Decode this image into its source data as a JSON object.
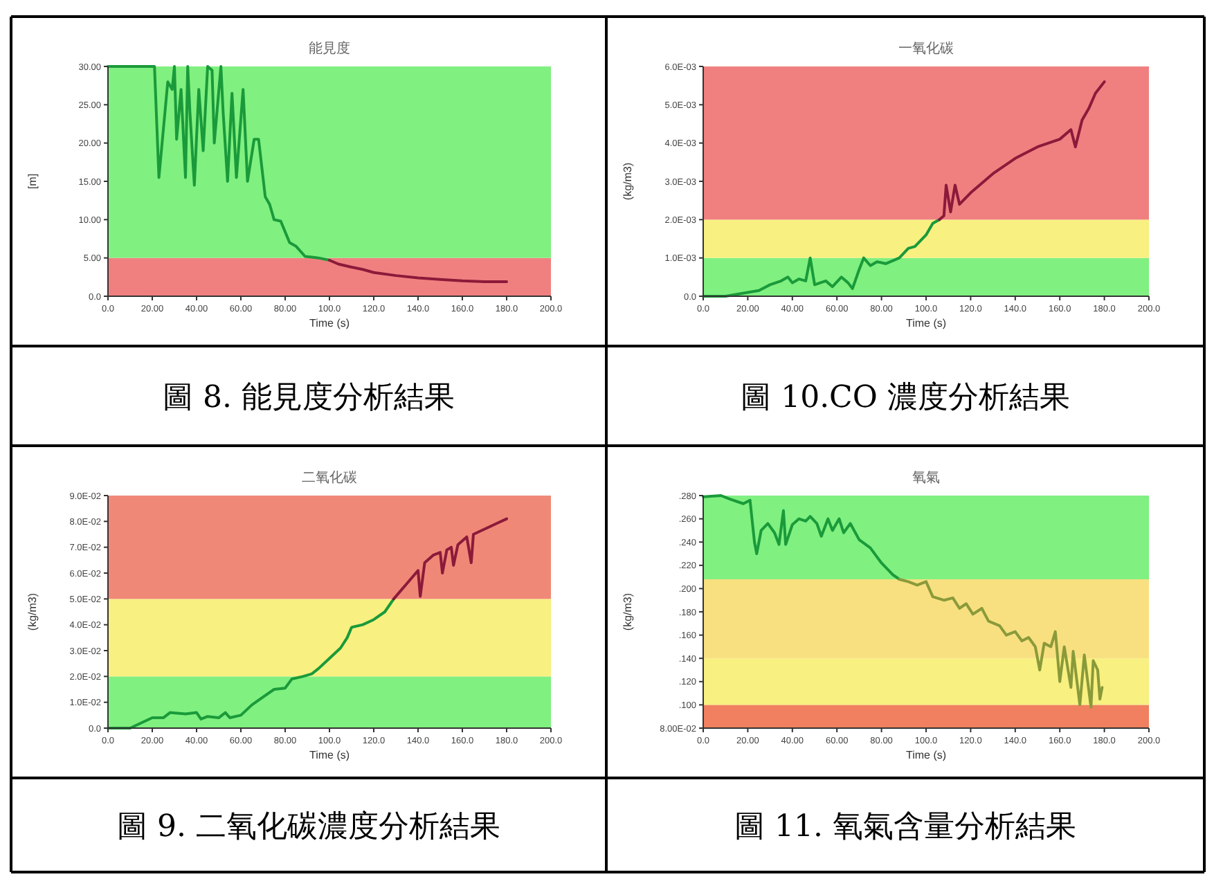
{
  "chart_data": [
    {
      "type": "line",
      "title": "能見度",
      "xlabel": "Time (s)",
      "ylabel": "[m]",
      "xlim": [
        0,
        200
      ],
      "ylim": [
        0,
        30
      ],
      "xticks": [
        {
          "value": 0,
          "label": "0.0"
        },
        {
          "value": 20,
          "label": "20.00"
        },
        {
          "value": 40,
          "label": "40.00"
        },
        {
          "value": 60,
          "label": "60.00"
        },
        {
          "value": 80,
          "label": "80.00"
        },
        {
          "value": 100,
          "label": "100.0"
        },
        {
          "value": 120,
          "label": "120.0"
        },
        {
          "value": 140,
          "label": "140.0"
        },
        {
          "value": 160,
          "label": "160.0"
        },
        {
          "value": 180,
          "label": "180.0"
        },
        {
          "value": 200,
          "label": "200.0"
        }
      ],
      "yticks": [
        {
          "value": 0,
          "label": "0.0"
        },
        {
          "value": 5,
          "label": "5.00"
        },
        {
          "value": 10,
          "label": "10.00"
        },
        {
          "value": 15,
          "label": "15.00"
        },
        {
          "value": 20,
          "label": "20.00"
        },
        {
          "value": 25,
          "label": "25.00"
        },
        {
          "value": 30,
          "label": "30.00"
        }
      ],
      "bands": [
        {
          "axis": "y",
          "from": 0,
          "to": 5,
          "color": "#f08080"
        },
        {
          "axis": "y",
          "from": 5,
          "to": 30,
          "color": "#80f080"
        }
      ],
      "series": [
        {
          "color": "#1a9a3a",
          "x": [
            0,
            21,
            23,
            27,
            29,
            30,
            31,
            33,
            35,
            36,
            37,
            39,
            41,
            43,
            45,
            47,
            48,
            51,
            52,
            54,
            56,
            58,
            61,
            63,
            66,
            68,
            71,
            73,
            75,
            78,
            82,
            85,
            89,
            92,
            95,
            100
          ],
          "values": [
            30,
            30,
            15.5,
            28,
            27,
            30,
            20.5,
            27,
            15.5,
            30,
            24,
            14.5,
            27,
            19,
            30,
            29.5,
            20,
            30,
            24,
            15,
            26.5,
            15.5,
            27,
            15,
            20.5,
            20.5,
            13,
            12,
            10,
            9.8,
            7,
            6.5,
            5.2,
            5.1,
            5,
            4.7
          ]
        },
        {
          "color": "#8b1a3a",
          "x": [
            100,
            104,
            110,
            115,
            120,
            130,
            140,
            150,
            160,
            170,
            180
          ],
          "values": [
            4.7,
            4.2,
            3.8,
            3.5,
            3.1,
            2.7,
            2.4,
            2.2,
            2.0,
            1.9,
            1.9
          ]
        }
      ],
      "annotations": [
        "圖 8. 能見度分析結果"
      ]
    },
    {
      "type": "line",
      "title": "一氧化碳",
      "xlabel": "Time (s)",
      "ylabel": "(kg/m3)",
      "xlim": [
        0,
        200
      ],
      "ylim": [
        0,
        0.006
      ],
      "xticks": [
        {
          "value": 0,
          "label": "0.0"
        },
        {
          "value": 20,
          "label": "20.00"
        },
        {
          "value": 40,
          "label": "40.00"
        },
        {
          "value": 60,
          "label": "60.00"
        },
        {
          "value": 80,
          "label": "80.00"
        },
        {
          "value": 100,
          "label": "100.0"
        },
        {
          "value": 120,
          "label": "120.0"
        },
        {
          "value": 140,
          "label": "140.0"
        },
        {
          "value": 160,
          "label": "160.0"
        },
        {
          "value": 180,
          "label": "180.0"
        },
        {
          "value": 200,
          "label": "200.0"
        }
      ],
      "yticks": [
        {
          "value": 0,
          "label": "0.0"
        },
        {
          "value": 0.001,
          "label": "1.0E-03"
        },
        {
          "value": 0.002,
          "label": "2.0E-03"
        },
        {
          "value": 0.003,
          "label": "3.0E-03"
        },
        {
          "value": 0.004,
          "label": "4.0E-03"
        },
        {
          "value": 0.005,
          "label": "5.0E-03"
        },
        {
          "value": 0.006,
          "label": "6.0E-03"
        }
      ],
      "bands": [
        {
          "axis": "y",
          "from": 0,
          "to": 0.001,
          "color": "#80f080"
        },
        {
          "axis": "y",
          "from": 0.001,
          "to": 0.002,
          "color": "#f8f080"
        },
        {
          "axis": "y",
          "from": 0.002,
          "to": 0.006,
          "color": "#f08080"
        }
      ],
      "series": [
        {
          "color": "#1a9a3a",
          "x": [
            0,
            10,
            15,
            20,
            25,
            30,
            35,
            38,
            40,
            43,
            46,
            48,
            50,
            55,
            58,
            62,
            65,
            67,
            70,
            72,
            75,
            78,
            82,
            88,
            92,
            95,
            100,
            103,
            106
          ],
          "values": [
            0,
            0,
            5e-05,
            0.0001,
            0.00015,
            0.0003,
            0.0004,
            0.0005,
            0.00035,
            0.00045,
            0.0004,
            0.001,
            0.0003,
            0.0004,
            0.00025,
            0.0005,
            0.00035,
            0.0002,
            0.0007,
            0.001,
            0.0008,
            0.0009,
            0.00085,
            0.001,
            0.00125,
            0.0013,
            0.0016,
            0.0019,
            0.002
          ]
        },
        {
          "color": "#8b1a3a",
          "x": [
            106,
            108,
            109,
            111,
            113,
            115,
            120,
            125,
            130,
            135,
            140,
            145,
            150,
            155,
            160,
            165,
            167,
            170,
            173,
            176,
            180
          ],
          "values": [
            0.002,
            0.0021,
            0.0029,
            0.0022,
            0.0029,
            0.0024,
            0.0027,
            0.00295,
            0.0032,
            0.0034,
            0.0036,
            0.00375,
            0.0039,
            0.004,
            0.0041,
            0.00435,
            0.0039,
            0.0046,
            0.0049,
            0.0053,
            0.0056
          ]
        }
      ],
      "annotations": [
        "圖 10.CO 濃度分析結果"
      ]
    },
    {
      "type": "line",
      "title": "二氧化碳",
      "xlabel": "Time (s)",
      "ylabel": "(kg/m3)",
      "xlim": [
        0,
        200
      ],
      "ylim": [
        0,
        0.09
      ],
      "xticks": [
        {
          "value": 0,
          "label": "0.0"
        },
        {
          "value": 20,
          "label": "20.00"
        },
        {
          "value": 40,
          "label": "40.00"
        },
        {
          "value": 60,
          "label": "60.00"
        },
        {
          "value": 80,
          "label": "80.00"
        },
        {
          "value": 100,
          "label": "100.0"
        },
        {
          "value": 120,
          "label": "120.0"
        },
        {
          "value": 140,
          "label": "140.0"
        },
        {
          "value": 160,
          "label": "160.0"
        },
        {
          "value": 180,
          "label": "180.0"
        },
        {
          "value": 200,
          "label": "200.0"
        }
      ],
      "yticks": [
        {
          "value": 0,
          "label": "0.0"
        },
        {
          "value": 0.01,
          "label": "1.0E-02"
        },
        {
          "value": 0.02,
          "label": "2.0E-02"
        },
        {
          "value": 0.03,
          "label": "3.0E-02"
        },
        {
          "value": 0.04,
          "label": "4.0E-02"
        },
        {
          "value": 0.05,
          "label": "5.0E-02"
        },
        {
          "value": 0.06,
          "label": "6.0E-02"
        },
        {
          "value": 0.07,
          "label": "7.0E-02"
        },
        {
          "value": 0.08,
          "label": "8.0E-02"
        },
        {
          "value": 0.09,
          "label": "9.0E-02"
        }
      ],
      "bands": [
        {
          "axis": "y",
          "from": 0,
          "to": 0.02,
          "color": "#80f080"
        },
        {
          "axis": "y",
          "from": 0.02,
          "to": 0.05,
          "color": "#f8f080"
        },
        {
          "axis": "y",
          "from": 0.05,
          "to": 0.09,
          "color": "#f08878"
        }
      ],
      "series": [
        {
          "color": "#1a9a3a",
          "x": [
            0,
            10,
            15,
            20,
            25,
            28,
            35,
            40,
            42,
            45,
            50,
            53,
            55,
            60,
            65,
            70,
            75,
            80,
            83,
            88,
            92,
            95,
            100,
            105,
            108,
            110,
            115,
            120,
            125,
            129
          ],
          "values": [
            0,
            0,
            0.002,
            0.004,
            0.004,
            0.006,
            0.0055,
            0.006,
            0.0035,
            0.0045,
            0.004,
            0.006,
            0.004,
            0.005,
            0.009,
            0.012,
            0.015,
            0.0155,
            0.019,
            0.02,
            0.021,
            0.023,
            0.027,
            0.031,
            0.035,
            0.039,
            0.04,
            0.042,
            0.045,
            0.05
          ]
        },
        {
          "color": "#8b1a3a",
          "x": [
            129,
            132,
            135,
            138,
            140,
            141,
            143,
            147,
            150,
            151,
            153,
            155,
            156,
            158,
            162,
            164,
            165,
            170,
            175,
            180
          ],
          "values": [
            0.05,
            0.053,
            0.056,
            0.059,
            0.061,
            0.051,
            0.064,
            0.067,
            0.068,
            0.06,
            0.069,
            0.07,
            0.063,
            0.071,
            0.074,
            0.064,
            0.075,
            0.077,
            0.079,
            0.081
          ]
        }
      ],
      "annotations": [
        "圖 9. 二氧化碳濃度分析結果"
      ]
    },
    {
      "type": "line",
      "title": "氧氣",
      "xlabel": "Time (s)",
      "ylabel": "(kg/m3)",
      "xlim": [
        0,
        200
      ],
      "ylim": [
        0.08,
        0.28
      ],
      "xticks": [
        {
          "value": 0,
          "label": "0.0"
        },
        {
          "value": 20,
          "label": "20.00"
        },
        {
          "value": 40,
          "label": "40.00"
        },
        {
          "value": 60,
          "label": "60.00"
        },
        {
          "value": 80,
          "label": "80.00"
        },
        {
          "value": 100,
          "label": "100.0"
        },
        {
          "value": 120,
          "label": "120.0"
        },
        {
          "value": 140,
          "label": "140.0"
        },
        {
          "value": 160,
          "label": "160.0"
        },
        {
          "value": 180,
          "label": "180.0"
        },
        {
          "value": 200,
          "label": "200.0"
        }
      ],
      "yticks": [
        {
          "value": 0.08,
          "label": "8.00E-02"
        },
        {
          "value": 0.1,
          "label": ".100"
        },
        {
          "value": 0.12,
          "label": ".120"
        },
        {
          "value": 0.14,
          "label": ".140"
        },
        {
          "value": 0.16,
          "label": ".160"
        },
        {
          "value": 0.18,
          "label": ".180"
        },
        {
          "value": 0.2,
          "label": ".200"
        },
        {
          "value": 0.22,
          "label": ".220"
        },
        {
          "value": 0.24,
          "label": ".240"
        },
        {
          "value": 0.26,
          "label": ".260"
        },
        {
          "value": 0.28,
          "label": ".280"
        }
      ],
      "bands": [
        {
          "axis": "y",
          "from": 0.08,
          "to": 0.1,
          "color": "#f08060"
        },
        {
          "axis": "y",
          "from": 0.1,
          "to": 0.14,
          "color": "#f8f080"
        },
        {
          "axis": "y",
          "from": 0.14,
          "to": 0.208,
          "color": "#f8e080"
        },
        {
          "axis": "y",
          "from": 0.208,
          "to": 0.28,
          "color": "#80f080"
        }
      ],
      "series": [
        {
          "color": "#1a9a3a",
          "x": [
            0,
            8,
            12,
            18,
            21,
            23,
            24,
            26,
            29,
            32,
            34,
            36,
            37,
            40,
            43,
            46,
            48,
            51,
            53,
            56,
            58,
            61,
            63,
            66,
            70,
            75,
            80,
            85,
            88
          ],
          "values": [
            0.279,
            0.28,
            0.277,
            0.273,
            0.276,
            0.24,
            0.23,
            0.25,
            0.256,
            0.248,
            0.238,
            0.267,
            0.238,
            0.255,
            0.26,
            0.258,
            0.262,
            0.256,
            0.245,
            0.26,
            0.25,
            0.26,
            0.248,
            0.256,
            0.242,
            0.235,
            0.222,
            0.212,
            0.208
          ]
        },
        {
          "color": "#8a9a3a",
          "x": [
            88,
            92,
            96,
            100,
            103,
            108,
            112,
            115,
            118,
            121,
            125,
            128,
            133,
            136,
            140,
            143,
            146,
            149,
            151,
            153,
            156,
            158,
            160,
            162,
            165,
            166,
            169,
            171,
            174,
            175,
            177,
            178,
            179
          ],
          "values": [
            0.208,
            0.206,
            0.203,
            0.206,
            0.193,
            0.19,
            0.192,
            0.183,
            0.187,
            0.178,
            0.183,
            0.172,
            0.168,
            0.16,
            0.163,
            0.155,
            0.158,
            0.15,
            0.13,
            0.153,
            0.15,
            0.163,
            0.12,
            0.15,
            0.115,
            0.146,
            0.1,
            0.143,
            0.098,
            0.138,
            0.13,
            0.105,
            0.115
          ]
        }
      ],
      "annotations": [
        "圖 11. 氧氣含量分析結果"
      ]
    }
  ]
}
